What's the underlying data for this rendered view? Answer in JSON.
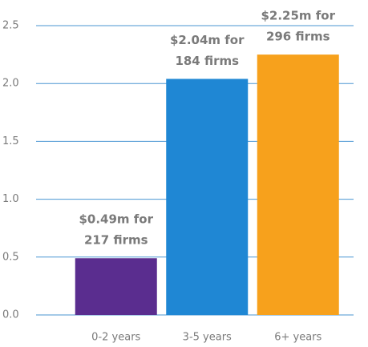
{
  "chart_data": {
    "type": "bar",
    "categories": [
      "0-2 years",
      "3-5 years",
      "6+ years"
    ],
    "values": [
      0.49,
      2.04,
      2.25
    ],
    "value_labels": [
      [
        "$0.49m for",
        "217 firms"
      ],
      [
        "$2.04m for",
        "184 firms"
      ],
      [
        "$2.25m for",
        "296 firms"
      ]
    ],
    "colors": [
      "#5a2d8f",
      "#1f87d4",
      "#f7a11c"
    ],
    "ylim": [
      0,
      2.5
    ],
    "yticks": [
      {
        "value": 0,
        "label": "0.0"
      },
      0.5,
      {
        "value": 1,
        "label": "1.0"
      },
      1.5,
      {
        "value": 2,
        "label": "2.0"
      },
      2.5
    ],
    "grid": true
  }
}
